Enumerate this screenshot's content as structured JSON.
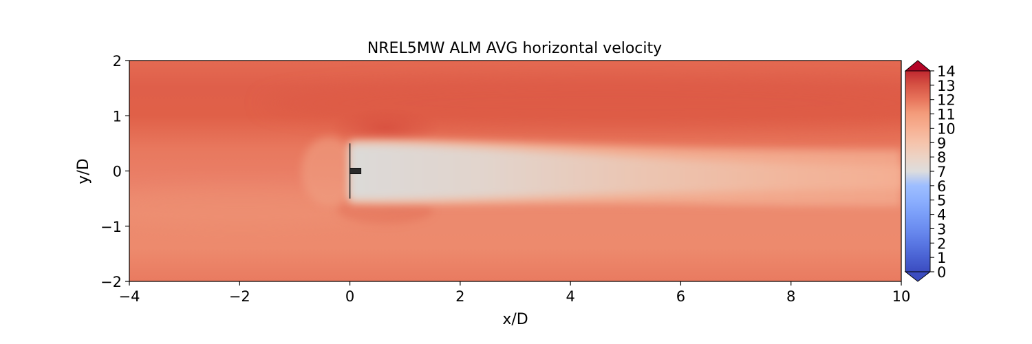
{
  "chart_data": {
    "type": "heatmap",
    "title": "NREL5MW ALM AVG horizontal velocity",
    "xlabel": "x/D",
    "ylabel": "y/D",
    "xlim": [
      -4,
      10
    ],
    "ylim": [
      -2,
      2
    ],
    "x_ticks": [
      -4,
      -2,
      0,
      2,
      4,
      6,
      8,
      10
    ],
    "x_tick_labels": [
      "−4",
      "−2",
      "0",
      "2",
      "4",
      "6",
      "8",
      "10"
    ],
    "y_ticks": [
      -2,
      -1,
      0,
      1,
      2
    ],
    "y_tick_labels": [
      "−2",
      "−1",
      "0",
      "1",
      "2"
    ],
    "colormap": "coolwarm",
    "colorbar": {
      "range": [
        0,
        14
      ],
      "extend": "both",
      "ticks": [
        0,
        1,
        2,
        3,
        4,
        5,
        6,
        7,
        8,
        9,
        10,
        11,
        12,
        13,
        14
      ],
      "tick_labels": [
        "0",
        "1",
        "2",
        "3",
        "4",
        "5",
        "6",
        "7",
        "8",
        "9",
        "10",
        "11",
        "12",
        "13",
        "14"
      ]
    },
    "field": {
      "description_values": "approximate horizontal velocity (m/s) levels",
      "freestream_upper": 12.3,
      "freestream_lower": 11.0,
      "wake_min_near": 7.2,
      "wake_recovered_far": 9.0,
      "wake_y_extent": [
        -0.5,
        0.5
      ]
    },
    "turbine": {
      "rotor_x": 0,
      "rotor_y_extent": [
        -0.5,
        0.5
      ],
      "nacelle_x_extent": [
        0,
        0.2
      ],
      "nacelle_y_extent": [
        -0.05,
        0.05
      ]
    }
  }
}
